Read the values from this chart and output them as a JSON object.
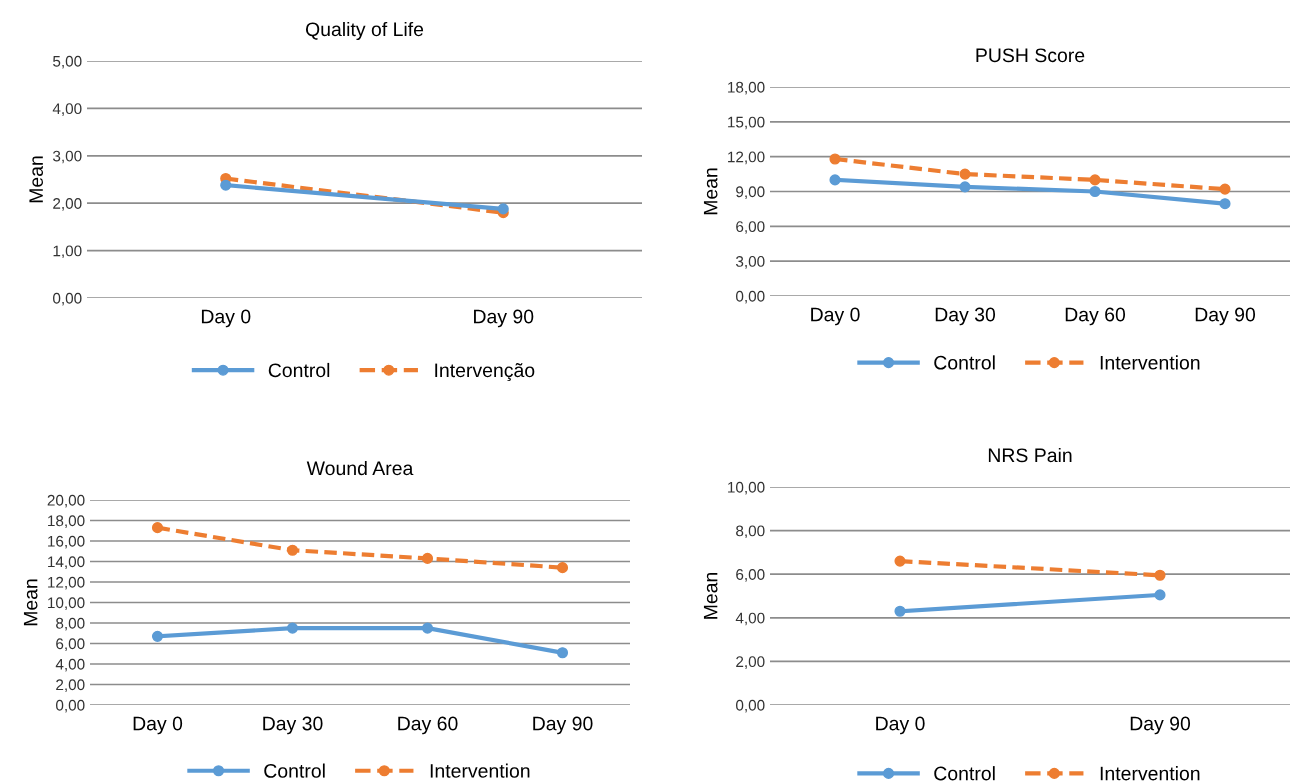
{
  "chart_data": [
    {
      "type": "line",
      "title": "Quality of Life",
      "ylabel": "Mean",
      "categories": [
        "Day 0",
        "Day 90"
      ],
      "series": [
        {
          "name": "Control",
          "color": "#5b9bd5",
          "line_style": "solid",
          "values": [
            2.38,
            1.88
          ]
        },
        {
          "name": "Intervenção",
          "color": "#ed7d31",
          "line_style": "dashed",
          "values": [
            2.52,
            1.8
          ]
        }
      ],
      "ylim": [
        0,
        5
      ],
      "yticks": [
        {
          "value": 0,
          "label": "0,00"
        },
        {
          "value": 1,
          "label": "1,00"
        },
        {
          "value": 2,
          "label": "2,00"
        },
        {
          "value": 3,
          "label": "3,00"
        },
        {
          "value": 4,
          "label": "4,00"
        },
        {
          "value": 5,
          "label": "5,00"
        }
      ],
      "grid": "y",
      "legend": "bottom",
      "marker": "circle"
    },
    {
      "type": "line",
      "title": "PUSH Score",
      "ylabel": "Mean",
      "categories": [
        "Day 0",
        "Day 30",
        "Day 60",
        "Day 90"
      ],
      "series": [
        {
          "name": "Control",
          "color": "#5b9bd5",
          "line_style": "solid",
          "values": [
            10.0,
            9.4,
            9.0,
            7.95
          ]
        },
        {
          "name": "Intervention",
          "color": "#ed7d31",
          "line_style": "dashed",
          "values": [
            11.8,
            10.5,
            10.0,
            9.2
          ]
        }
      ],
      "ylim": [
        0,
        18
      ],
      "yticks": [
        {
          "value": 0,
          "label": "0,00"
        },
        {
          "value": 3,
          "label": "3,00"
        },
        {
          "value": 6,
          "label": "6,00"
        },
        {
          "value": 9,
          "label": "9,00"
        },
        {
          "value": 12,
          "label": "12,00"
        },
        {
          "value": 15,
          "label": "15,00"
        },
        {
          "value": 18,
          "label": "18,00"
        }
      ],
      "grid": "y",
      "legend": "bottom",
      "marker": "circle"
    },
    {
      "type": "line",
      "title": "Wound Area",
      "ylabel": "Mean",
      "categories": [
        "Day 0",
        "Day 30",
        "Day 60",
        "Day 90"
      ],
      "series": [
        {
          "name": "Control",
          "color": "#5b9bd5",
          "line_style": "solid",
          "values": [
            6.7,
            7.5,
            7.5,
            5.1
          ]
        },
        {
          "name": "Intervention",
          "color": "#ed7d31",
          "line_style": "dashed",
          "values": [
            17.3,
            15.1,
            14.3,
            13.4
          ]
        }
      ],
      "ylim": [
        0,
        20
      ],
      "yticks": [
        {
          "value": 0,
          "label": "0,00"
        },
        {
          "value": 2,
          "label": "2,00"
        },
        {
          "value": 4,
          "label": "4,00"
        },
        {
          "value": 6,
          "label": "6,00"
        },
        {
          "value": 8,
          "label": "8,00"
        },
        {
          "value": 10,
          "label": "10,00"
        },
        {
          "value": 12,
          "label": "12,00"
        },
        {
          "value": 14,
          "label": "14,00"
        },
        {
          "value": 16,
          "label": "16,00"
        },
        {
          "value": 18,
          "label": "18,00"
        },
        {
          "value": 20,
          "label": "20,00"
        }
      ],
      "grid": "y",
      "legend": "bottom",
      "marker": "circle"
    },
    {
      "type": "line",
      "title": "NRS Pain",
      "ylabel": "Mean",
      "categories": [
        "Day 0",
        "Day 90"
      ],
      "series": [
        {
          "name": "Control",
          "color": "#5b9bd5",
          "line_style": "solid",
          "values": [
            4.3,
            5.05
          ]
        },
        {
          "name": "Intervention",
          "color": "#ed7d31",
          "line_style": "dashed",
          "values": [
            6.6,
            5.95
          ]
        }
      ],
      "ylim": [
        0,
        10
      ],
      "yticks": [
        {
          "value": 0,
          "label": "0,00"
        },
        {
          "value": 2,
          "label": "2,00"
        },
        {
          "value": 4,
          "label": "4,00"
        },
        {
          "value": 6,
          "label": "6,00"
        },
        {
          "value": 8,
          "label": "8,00"
        },
        {
          "value": 10,
          "label": "10,00"
        }
      ],
      "grid": "y",
      "legend": "bottom",
      "marker": "circle"
    }
  ]
}
